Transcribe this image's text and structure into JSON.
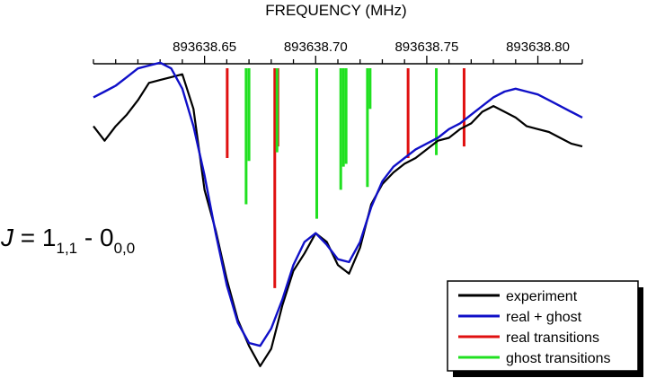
{
  "chart_data": {
    "type": "line",
    "title": "",
    "xlabel": "FREQUENCY  (MHz)",
    "ylabel": "",
    "x_axis_position": "top",
    "xlim": [
      893638.6,
      893638.82
    ],
    "x_ticks": [
      893638.65,
      893638.7,
      893638.75,
      893638.8
    ],
    "x_tick_labels": [
      "893638.65",
      "893638.70",
      "893638.75",
      "893638.80"
    ],
    "x_minor_step": 0.01,
    "ylim": [
      -1.0,
      0.05
    ],
    "grid": false,
    "legend": {
      "position": "bottom-right",
      "entries": [
        {
          "label": "experiment",
          "color": "#000000"
        },
        {
          "label": "real + ghost",
          "color": "#1010c8"
        },
        {
          "label": "real transitions",
          "color": "#e01010"
        },
        {
          "label": "ghost transitions",
          "color": "#20e020"
        }
      ]
    },
    "annotation": {
      "main": "J",
      "part1": " = 1",
      "sub1": "1,1",
      "part2": " - 0",
      "sub2": "0,0"
    },
    "series": [
      {
        "name": "experiment",
        "color": "#000000",
        "x": [
          893638.6,
          893638.605,
          893638.61,
          893638.615,
          893638.62,
          893638.625,
          893638.63,
          893638.635,
          893638.64,
          893638.645,
          893638.65,
          893638.655,
          893638.66,
          893638.665,
          893638.67,
          893638.675,
          893638.68,
          893638.685,
          893638.69,
          893638.695,
          893638.7,
          893638.705,
          893638.71,
          893638.715,
          893638.72,
          893638.725,
          893638.73,
          893638.735,
          893638.74,
          893638.745,
          893638.75,
          893638.755,
          893638.76,
          893638.765,
          893638.77,
          893638.775,
          893638.78,
          893638.785,
          893638.79,
          893638.795,
          893638.8,
          893638.805,
          893638.81,
          893638.815,
          893638.82
        ],
        "y": [
          -0.16,
          -0.21,
          -0.16,
          -0.12,
          -0.07,
          -0.01,
          0.0,
          0.01,
          0.02,
          -0.1,
          -0.38,
          -0.52,
          -0.69,
          -0.83,
          -0.92,
          -0.99,
          -0.93,
          -0.78,
          -0.66,
          -0.6,
          -0.53,
          -0.56,
          -0.64,
          -0.67,
          -0.58,
          -0.43,
          -0.36,
          -0.32,
          -0.29,
          -0.27,
          -0.24,
          -0.21,
          -0.2,
          -0.17,
          -0.15,
          -0.11,
          -0.09,
          -0.11,
          -0.13,
          -0.16,
          -0.17,
          -0.18,
          -0.2,
          -0.22,
          -0.23
        ]
      },
      {
        "name": "real + ghost",
        "color": "#1010c8",
        "x": [
          893638.6,
          893638.605,
          893638.61,
          893638.615,
          893638.62,
          893638.625,
          893638.63,
          893638.635,
          893638.64,
          893638.645,
          893638.65,
          893638.655,
          893638.66,
          893638.665,
          893638.67,
          893638.675,
          893638.68,
          893638.685,
          893638.69,
          893638.695,
          893638.7,
          893638.705,
          893638.71,
          893638.715,
          893638.72,
          893638.725,
          893638.73,
          893638.735,
          893638.74,
          893638.745,
          893638.75,
          893638.755,
          893638.76,
          893638.765,
          893638.77,
          893638.775,
          893638.78,
          893638.785,
          893638.79,
          893638.795,
          893638.8,
          893638.805,
          893638.81,
          893638.815,
          893638.82
        ],
        "y": [
          -0.06,
          -0.04,
          -0.02,
          0.01,
          0.04,
          0.05,
          0.06,
          0.04,
          -0.03,
          -0.16,
          -0.33,
          -0.53,
          -0.71,
          -0.84,
          -0.91,
          -0.92,
          -0.86,
          -0.76,
          -0.64,
          -0.56,
          -0.53,
          -0.57,
          -0.62,
          -0.63,
          -0.56,
          -0.44,
          -0.35,
          -0.3,
          -0.27,
          -0.24,
          -0.22,
          -0.2,
          -0.17,
          -0.15,
          -0.12,
          -0.09,
          -0.06,
          -0.04,
          -0.03,
          -0.04,
          -0.05,
          -0.07,
          -0.09,
          -0.11,
          -0.13
        ]
      },
      {
        "name": "real transitions",
        "color": "#e01010",
        "type": "stick",
        "x": [
          893638.6602,
          893638.6816,
          893638.683,
          893638.7416,
          893638.7668
        ],
        "y": [
          -0.27,
          -0.72,
          -0.23,
          -0.27,
          -0.23
        ]
      },
      {
        "name": "ghost transitions",
        "color": "#20e020",
        "type": "stick",
        "x": [
          893638.6687,
          893638.67,
          893638.6826,
          893638.7005,
          893638.7113,
          893638.7125,
          893638.7137,
          893638.7233,
          893638.7245,
          893638.7543
        ],
        "y": [
          -0.43,
          -0.28,
          -0.25,
          -0.48,
          -0.38,
          -0.3,
          -0.29,
          -0.37,
          -0.1,
          -0.26
        ]
      }
    ]
  }
}
